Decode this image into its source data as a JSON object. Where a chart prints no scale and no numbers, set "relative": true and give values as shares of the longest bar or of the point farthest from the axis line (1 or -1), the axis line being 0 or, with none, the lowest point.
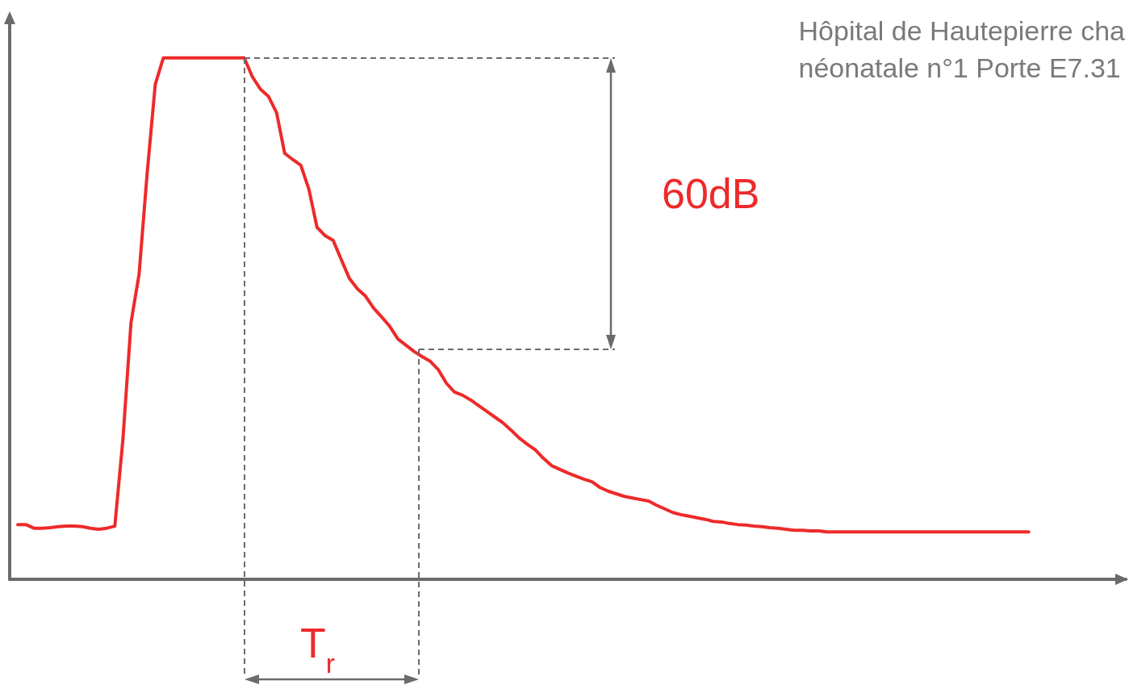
{
  "chart_data": {
    "type": "line",
    "title": "Hôpital de Hautepierre cha\nnéonatale n°1 Porte E7.31",
    "relative": true,
    "marker": "none",
    "grid": false,
    "annotations": [
      "60dB",
      "T$_{r}$"
    ],
    "categories": [
      null,
      null,
      null,
      null,
      null,
      null,
      null,
      null,
      null,
      null,
      null,
      null,
      null,
      null,
      null,
      null,
      null,
      null,
      null,
      null,
      null,
      null,
      null,
      null,
      null,
      null,
      null,
      null,
      null,
      null,
      null,
      null,
      null,
      null,
      null,
      null,
      null,
      null,
      null,
      null,
      null,
      null,
      null,
      null,
      null,
      null,
      null,
      null,
      null,
      null,
      null,
      null,
      null,
      null,
      null,
      null,
      null,
      null,
      null,
      null,
      null,
      null,
      null,
      null,
      null,
      null,
      null,
      null,
      null,
      null,
      null,
      null,
      null,
      null,
      null,
      null,
      null,
      null,
      null,
      null,
      null,
      null,
      null,
      null,
      null,
      null,
      null,
      null,
      null,
      null,
      null,
      null,
      null,
      null,
      null,
      null,
      null,
      null,
      null,
      null,
      null,
      null,
      null,
      null,
      null,
      null,
      null,
      null,
      null,
      null,
      null,
      null,
      null,
      null,
      null,
      null,
      null,
      null,
      null,
      null,
      null,
      null,
      null,
      null,
      null,
      null,
      null,
      null,
      null,
      null,
      null,
      null,
      null,
      null,
      null,
      null,
      null,
      null,
      null
    ],
    "series": [
      {
        "color": "#ee2a2a",
        "values": [
          null,
          0.105,
          0.105,
          0.098,
          0.098,
          0.099,
          0.101,
          0.102,
          0.102,
          0.101,
          0.098,
          0.096,
          0.098,
          0.102,
          0.268,
          0.492,
          0.585,
          0.779,
          0.949,
          1,
          1,
          1,
          1,
          1,
          1,
          1,
          1,
          1,
          1,
          1,
          0.964,
          0.94,
          0.926,
          0.895,
          0.817,
          0.805,
          0.794,
          0.748,
          0.675,
          0.659,
          0.65,
          0.613,
          0.577,
          0.557,
          0.543,
          0.52,
          0.503,
          0.485,
          0.461,
          0.449,
          0.437,
          0.427,
          0.418,
          0.402,
          0.376,
          0.359,
          0.353,
          0.344,
          0.333,
          0.322,
          0.311,
          0.3,
          0.286,
          0.271,
          0.259,
          0.248,
          0.232,
          0.218,
          0.211,
          0.204,
          0.198,
          0.192,
          0.187,
          0.176,
          0.169,
          0.164,
          0.159,
          0.156,
          0.153,
          0.15,
          0.142,
          0.135,
          0.128,
          0.124,
          0.121,
          0.118,
          0.115,
          0.111,
          0.11,
          0.107,
          0.105,
          0.104,
          0.102,
          0.101,
          0.099,
          0.098,
          0.096,
          0.094,
          0.094,
          0.093,
          0.093,
          0.091,
          0.091,
          0.091,
          0.091,
          0.091,
          0.091,
          0.091,
          0.091,
          0.091,
          0.091,
          0.091,
          0.091,
          0.091,
          0.091,
          0.091,
          0.091,
          0.091,
          0.091,
          0.091,
          0.091,
          0.091,
          0.091,
          0.091,
          0.091,
          0.091,
          0.091,
          null,
          null,
          null,
          null,
          null,
          null,
          null,
          null,
          null,
          null,
          null,
          null
        ]
      }
    ]
  }
}
